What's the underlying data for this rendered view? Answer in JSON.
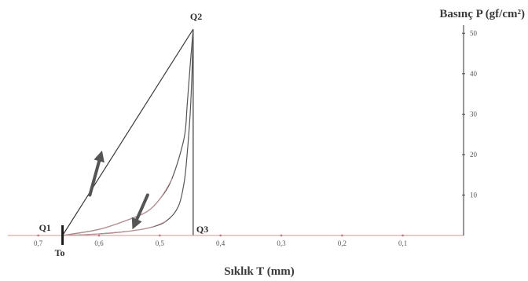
{
  "chart_data": {
    "type": "line",
    "x_axis": {
      "title": "Sıklık  T (mm)",
      "reversed": true,
      "range": [
        0.75,
        0.0
      ],
      "ticks": [
        0.7,
        0.6,
        0.5,
        0.4,
        0.3,
        0.2,
        0.1
      ],
      "tick_labels": [
        "0,7",
        "0,6",
        "0,5",
        "0,4",
        "0,3",
        "0,2",
        "0,1"
      ],
      "line_color": "#e3a3a8"
    },
    "y_axis": {
      "title": "Basınç P (gf/cm²)",
      "position": "right",
      "range": [
        0,
        52
      ],
      "ticks": [
        10,
        20,
        30,
        40,
        50
      ],
      "tick_labels": [
        "10",
        "20",
        "30",
        "40",
        "50"
      ]
    },
    "points": [
      {
        "label": "Q1",
        "x": 0.66,
        "y": 0
      },
      {
        "label": "Q2",
        "x": 0.445,
        "y": 51
      },
      {
        "label": "Q3",
        "x": 0.445,
        "y": 0
      },
      {
        "label": "To",
        "x": 0.66,
        "y": 0
      }
    ],
    "series": [
      {
        "role": "straight-load-line",
        "x": [
          0.66,
          0.445
        ],
        "y": [
          0,
          51
        ]
      },
      {
        "role": "vertical-line",
        "x": [
          0.445,
          0.445
        ],
        "y": [
          51,
          0
        ]
      },
      {
        "role": "loading-curve",
        "color": "#555555",
        "x": [
          0.66,
          0.6,
          0.55,
          0.52,
          0.5,
          0.48,
          0.46,
          0.455,
          0.45,
          0.445
        ],
        "y": [
          0,
          1.5,
          4,
          6,
          9,
          14,
          24,
          32,
          42,
          51
        ]
      },
      {
        "role": "unloading-curve",
        "color": "#555555",
        "x": [
          0.445,
          0.447,
          0.45,
          0.455,
          0.46,
          0.47,
          0.49,
          0.52,
          0.56,
          0.61,
          0.66
        ],
        "y": [
          51,
          40,
          30,
          20,
          13,
          7,
          3.5,
          1.8,
          0.9,
          0.3,
          0
        ]
      },
      {
        "role": "loading-curve-faint",
        "color": "#e3a3a8",
        "x": [
          0.66,
          0.6,
          0.55,
          0.52,
          0.5,
          0.48
        ],
        "y": [
          0,
          1.5,
          4,
          6,
          9,
          14
        ]
      },
      {
        "role": "unloading-curve-faint",
        "color": "#e3a3a8",
        "x": [
          0.66,
          0.61,
          0.56,
          0.52,
          0.49
        ],
        "y": [
          0,
          0.3,
          0.9,
          1.8,
          3.5
        ]
      }
    ],
    "arrows": [
      {
        "direction": "up",
        "from": [
          0.615,
          10
        ],
        "to": [
          0.595,
          21
        ]
      },
      {
        "direction": "down",
        "from": [
          0.52,
          10
        ],
        "to": [
          0.545,
          1.5
        ]
      }
    ],
    "grid": false,
    "legend": "none"
  }
}
